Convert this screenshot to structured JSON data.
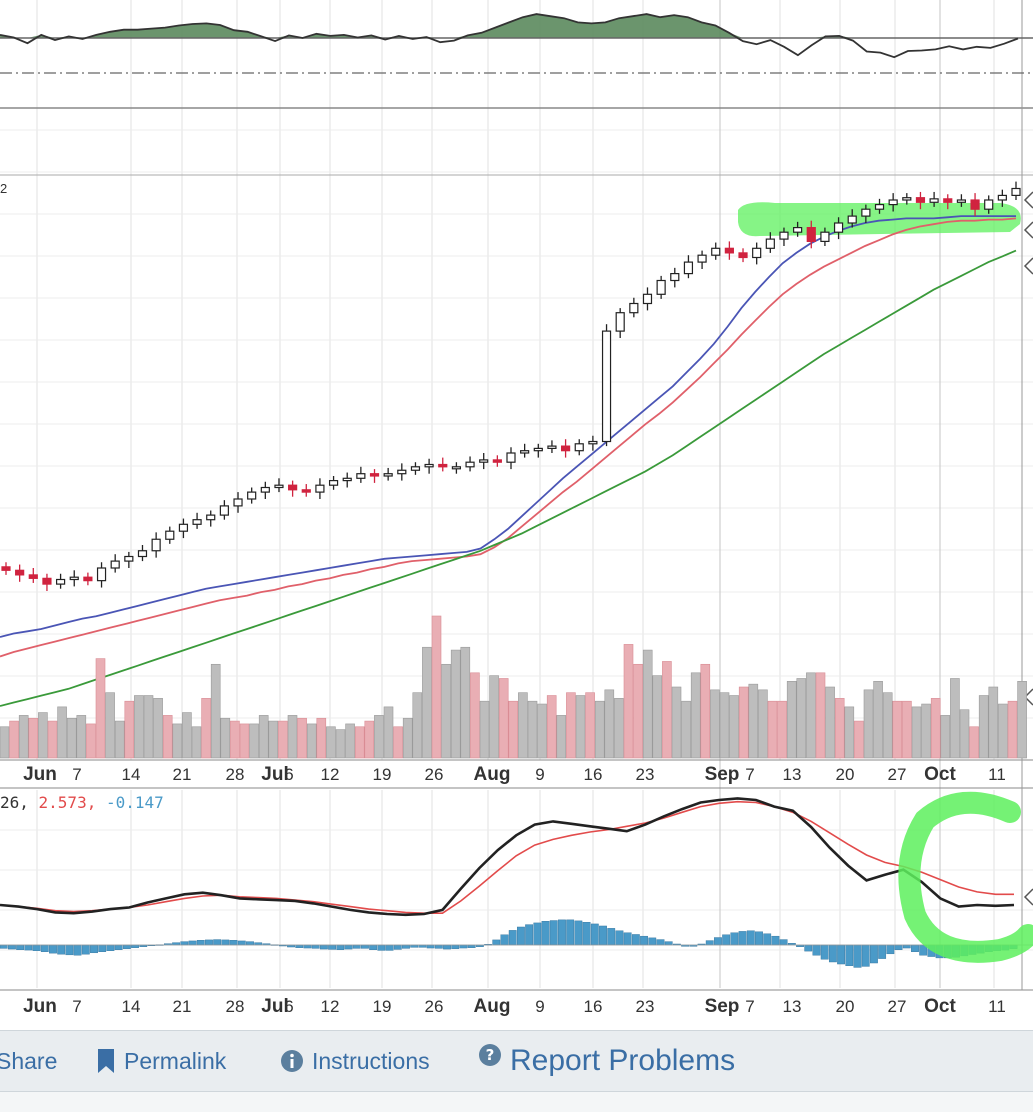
{
  "chart_data": [
    {
      "type": "line",
      "panel": "top-indicator",
      "series": [
        {
          "values": [
            0.6,
            0.1,
            -1.0,
            0.6,
            -0.4,
            0.3,
            -0.2,
            0.6,
            1.2,
            1.6,
            1.6,
            1.8,
            2.0,
            2.4,
            2.7,
            2.8,
            2.5,
            1.5,
            1.2,
            0.3,
            -0.6,
            0.5,
            0.0,
            0.8,
            0.4,
            0.6,
            0.1,
            0.5,
            -0.3,
            0.4,
            -0.2,
            0.2,
            -0.8,
            -0.5,
            0.5,
            1.0,
            2.0,
            3.0,
            4.0,
            4.6,
            4.2,
            3.8,
            3.0,
            2.8,
            3.0,
            3.8,
            4.2,
            4.6,
            4.0,
            4.4,
            4.0,
            3.0,
            2.4,
            1.0,
            -0.6,
            -1.2,
            -0.4,
            -1.7,
            -3.3,
            -1.4,
            0.3,
            0.4,
            -0.5,
            -2.6,
            -2.8,
            -3.7,
            -2.5,
            -2.4,
            -2.2,
            -1.6,
            -2.2,
            -1.7,
            -1.9,
            -1.1,
            -0.1
          ]
        }
      ],
      "fill_above_baseline": "#5b8a5d",
      "reference_line": "dash-dot"
    },
    {
      "type": "candlestick",
      "panel": "price",
      "visible_value_label": "2",
      "moving_averages": [
        {
          "color": "#4a55b5",
          "values": [
            20,
            23,
            25,
            27,
            30,
            33,
            36,
            38,
            41,
            44,
            47,
            50,
            53,
            56,
            59,
            62,
            64,
            66,
            68,
            70,
            72,
            74,
            76,
            78,
            80,
            82,
            84,
            86,
            88,
            89,
            90,
            91,
            92,
            93,
            94,
            97,
            105,
            114,
            125,
            136,
            147,
            158,
            168,
            178,
            188,
            198,
            208,
            218,
            228,
            238,
            250,
            262,
            275,
            290,
            306,
            320,
            333,
            345,
            354,
            362,
            368,
            373,
            377,
            380,
            382,
            383,
            384,
            384,
            384,
            385,
            386,
            386,
            386,
            386,
            386
          ]
        },
        {
          "color": "#e0606a",
          "values": [
            3,
            7,
            10,
            13,
            16,
            19,
            22,
            25,
            28,
            31,
            34,
            37,
            40,
            43,
            46,
            49,
            52,
            54,
            56,
            59,
            61,
            64,
            66,
            69,
            71,
            74,
            76,
            79,
            81,
            84,
            86,
            87,
            88,
            89,
            90,
            92,
            98,
            106,
            116,
            126,
            136,
            146,
            155,
            165,
            175,
            185,
            195,
            205,
            214,
            224,
            235,
            246,
            258,
            270,
            283,
            295,
            307,
            318,
            327,
            335,
            342,
            348,
            354,
            360,
            365,
            370,
            374,
            377,
            379,
            381,
            382,
            382,
            383,
            383,
            384
          ]
        },
        {
          "color": "#3a9a3a",
          "values": [
            -40,
            -37,
            -34,
            -31,
            -28,
            -25,
            -21,
            -17,
            -13,
            -9,
            -5,
            -1,
            3,
            7,
            11,
            15,
            19,
            23,
            27,
            31,
            35,
            39,
            43,
            47,
            51,
            55,
            59,
            63,
            67,
            71,
            75,
            79,
            83,
            87,
            91,
            95,
            100,
            105,
            110,
            116,
            122,
            128,
            134,
            140,
            146,
            152,
            158,
            164,
            171,
            178,
            186,
            194,
            202,
            210,
            218,
            226,
            234,
            242,
            250,
            258,
            266,
            273,
            280,
            287,
            294,
            301,
            308,
            315,
            322,
            328,
            334,
            340,
            346,
            351,
            356
          ]
        }
      ],
      "candles_close": [
        78,
        74,
        71,
        66,
        70,
        72,
        69,
        80,
        86,
        90,
        95,
        105,
        112,
        118,
        122,
        126,
        134,
        140,
        146,
        150,
        152,
        148,
        146,
        152,
        156,
        158,
        162,
        160,
        162,
        165,
        168,
        170,
        168,
        168,
        172,
        174,
        172,
        180,
        182,
        184,
        186,
        182,
        188,
        190,
        286,
        302,
        310,
        318,
        330,
        336,
        346,
        352,
        358,
        354,
        350,
        358,
        366,
        372,
        376,
        364,
        372,
        380,
        386,
        392,
        396,
        400,
        402,
        398,
        401,
        398,
        400,
        392,
        400,
        404,
        410
      ]
    },
    {
      "type": "bar",
      "panel": "volume",
      "values": [
        22,
        26,
        30,
        28,
        32,
        26,
        36,
        28,
        30,
        24,
        70,
        46,
        26,
        40,
        44,
        44,
        42,
        30,
        24,
        32,
        22,
        42,
        66,
        28,
        26,
        24,
        24,
        30,
        26,
        26,
        30,
        28,
        24,
        28,
        22,
        20,
        24,
        22,
        26,
        30,
        36,
        22,
        28,
        46,
        78,
        100,
        66,
        76,
        78,
        60,
        40,
        58,
        56,
        40,
        46,
        40,
        38,
        44,
        30,
        46,
        44,
        46,
        40,
        48,
        42,
        80,
        66,
        76,
        58,
        68,
        50,
        40,
        60,
        66,
        48,
        46,
        44,
        50,
        52,
        48,
        40,
        40,
        54,
        56,
        60,
        60,
        50,
        42,
        36,
        26,
        48,
        54,
        46,
        40,
        40,
        36,
        38,
        42,
        30,
        56,
        34,
        22,
        44,
        50,
        38,
        40,
        54
      ]
    },
    {
      "type": "line",
      "panel": "macd",
      "legend": {
        "prefix": "26,",
        "value1": "2.573,",
        "value2": "-0.147"
      },
      "series": [
        {
          "color": "#222222",
          "values": [
            0.0,
            -0.2,
            -0.5,
            -0.9,
            -1.0,
            -0.8,
            -0.5,
            -0.3,
            0.3,
            0.8,
            1.3,
            1.5,
            1.2,
            0.8,
            0.7,
            0.6,
            0.5,
            0.2,
            -0.2,
            -0.6,
            -0.9,
            -1.1,
            -1.2,
            -1.1,
            -0.6,
            2.0,
            4.5,
            6.7,
            8.5,
            9.8,
            10.2,
            9.9,
            9.6,
            9.3,
            9.0,
            9.8,
            10.8,
            11.7,
            12.5,
            12.8,
            13.0,
            12.8,
            12.0,
            11.5,
            9.5,
            7.0,
            4.8,
            3.0,
            3.7,
            4.3,
            2.8,
            0.8,
            -0.2,
            0.0,
            -0.1,
            0.0
          ]
        },
        {
          "color": "#e24b4b",
          "values": [
            0.0,
            -0.2,
            -0.4,
            -0.7,
            -0.8,
            -0.7,
            -0.5,
            -0.3,
            0.0,
            0.4,
            0.8,
            1.1,
            1.2,
            1.0,
            0.9,
            0.8,
            0.6,
            0.4,
            0.1,
            -0.2,
            -0.5,
            -0.7,
            -0.9,
            -1.0,
            -1.0,
            0.5,
            2.3,
            4.2,
            6.0,
            7.3,
            8.0,
            8.5,
            8.9,
            9.2,
            9.6,
            10.0,
            10.6,
            11.3,
            12.0,
            12.4,
            12.6,
            12.5,
            12.0,
            11.3,
            10.2,
            8.8,
            7.4,
            6.1,
            5.2,
            4.7,
            4.0,
            3.1,
            2.2,
            1.6,
            1.3,
            1.3
          ]
        }
      ],
      "histogram": [
        -1.0,
        -1.2,
        -1.4,
        -1.5,
        -1.7,
        -2.0,
        -2.4,
        -2.7,
        -2.9,
        -3.0,
        -2.7,
        -2.3,
        -2.0,
        -1.7,
        -1.4,
        -1.1,
        -0.8,
        -0.5,
        -0.2,
        0.1,
        0.4,
        0.7,
        1.0,
        1.2,
        1.4,
        1.5,
        1.6,
        1.5,
        1.4,
        1.2,
        1.0,
        0.7,
        0.4,
        0.1,
        -0.3,
        -0.6,
        -0.8,
        -0.9,
        -1.0,
        -1.2,
        -1.3,
        -1.4,
        -1.2,
        -1.0,
        -1.0,
        -1.4,
        -1.6,
        -1.6,
        -1.3,
        -1.0,
        -0.7,
        -0.7,
        -0.9,
        -1.0,
        -1.2,
        -1.1,
        -0.9,
        -0.8,
        -0.5,
        0.2,
        1.5,
        3.0,
        4.3,
        5.3,
        6.0,
        6.5,
        7.0,
        7.2,
        7.4,
        7.4,
        7.1,
        6.7,
        6.2,
        5.6,
        4.9,
        4.2,
        3.6,
        3.1,
        2.6,
        2.1,
        1.6,
        1.0,
        0.3,
        -0.4,
        -0.4,
        0.3,
        1.3,
        2.2,
        3.0,
        3.6,
        4.0,
        4.2,
        3.9,
        3.3,
        2.6,
        1.6,
        0.5,
        -0.5,
        -1.8,
        -3.0,
        -4.2,
        -5.0,
        -5.6,
        -6.1,
        -6.6,
        -6.3,
        -5.3,
        -4.0,
        -2.6,
        -1.4,
        -0.9,
        -2.0,
        -3.0,
        -3.4,
        -3.8,
        -3.8,
        -3.6,
        -3.2,
        -2.8,
        -2.4,
        -2.0,
        -1.7,
        -1.5,
        -1.1
      ]
    },
    {
      "type": "axis",
      "xaxis_ticks": [
        "Jun",
        "7",
        "14",
        "21",
        "28",
        "Jul",
        "6",
        "12",
        "19",
        "26",
        "Aug",
        "9",
        "16",
        "23",
        "Sep",
        "7",
        "13",
        "20",
        "27",
        "Oct",
        "11"
      ]
    }
  ],
  "footer": {
    "share_label": "Share",
    "permalink_label": "Permalink",
    "instructions_label": "Instructions",
    "report_label": "Report Problems"
  },
  "colors": {
    "candle_up_outline": "#222222",
    "candle_down_fill": "#d0233f",
    "volume_up": "#bdbdbd",
    "volume_down": "#e9aeb4",
    "macd_hist": "#4a9ac8",
    "highlight": "#5df05d",
    "link": "#3a6ea5"
  }
}
